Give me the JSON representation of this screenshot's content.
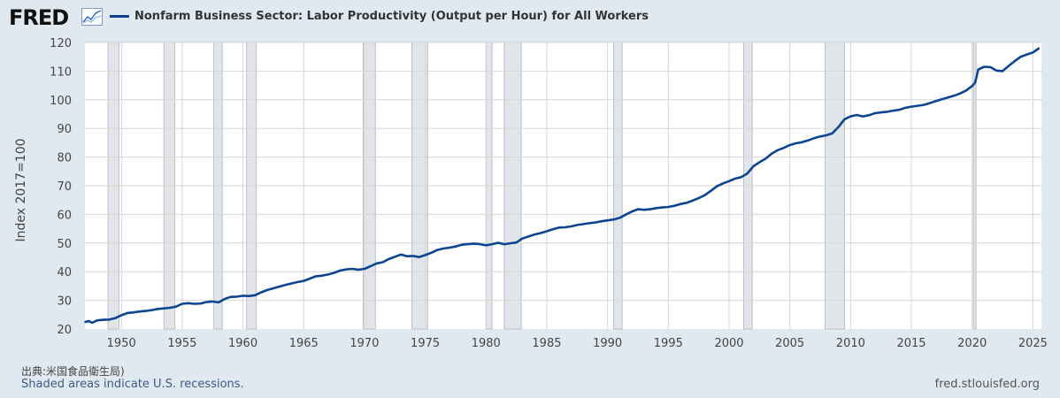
{
  "brand": {
    "logo_text": "FRED"
  },
  "colors": {
    "series": "#0b4592",
    "plot_bg": "#ffffff",
    "page_bg": "#e1e9f0",
    "grid": "#d6d6d6",
    "recession": "#e1e5ea"
  },
  "footer": {
    "source": "出典:米国食品衛生局)",
    "recession_note": "Shaded areas indicate U.S. recessions.",
    "url": "fred.stlouisfed.org"
  },
  "chart_data": {
    "type": "line",
    "ylabel": "Index 2017=100",
    "ylim": [
      20,
      120
    ],
    "xlim": [
      1947.0,
      2025.7
    ],
    "y_ticks": [
      20,
      30,
      40,
      50,
      60,
      70,
      80,
      90,
      100,
      110,
      120
    ],
    "x_ticks": [
      1950,
      1955,
      1960,
      1965,
      1970,
      1975,
      1980,
      1985,
      1990,
      1995,
      2000,
      2005,
      2010,
      2015,
      2020,
      2025
    ],
    "grid": true,
    "legend_placement": "top-left",
    "recessions": [
      [
        1948.9,
        1949.8
      ],
      [
        1953.5,
        1954.4
      ],
      [
        1957.6,
        1958.3
      ],
      [
        1960.3,
        1961.1
      ],
      [
        1969.9,
        1970.9
      ],
      [
        1973.9,
        1975.2
      ],
      [
        1980.0,
        1980.5
      ],
      [
        1981.5,
        1982.9
      ],
      [
        1990.5,
        1991.2
      ],
      [
        2001.2,
        2001.9
      ],
      [
        2007.9,
        2009.5
      ],
      [
        2020.1,
        2020.3
      ]
    ],
    "series": [
      {
        "name": "Nonfarm Business Sector: Labor Productivity (Output per Hour) for All Workers",
        "x": [
          1947.0,
          1947.3,
          1947.6,
          1948.0,
          1948.5,
          1949.0,
          1949.5,
          1950.0,
          1950.5,
          1951.0,
          1951.5,
          1952.0,
          1952.5,
          1953.0,
          1953.5,
          1954.0,
          1954.5,
          1955.0,
          1955.5,
          1956.0,
          1956.5,
          1957.0,
          1957.5,
          1958.0,
          1958.5,
          1959.0,
          1959.5,
          1960.0,
          1960.5,
          1961.0,
          1961.5,
          1962.0,
          1962.5,
          1963.0,
          1963.5,
          1964.0,
          1964.5,
          1965.0,
          1965.5,
          1966.0,
          1966.5,
          1967.0,
          1967.5,
          1968.0,
          1968.5,
          1969.0,
          1969.5,
          1970.0,
          1970.5,
          1971.0,
          1971.5,
          1972.0,
          1972.5,
          1973.0,
          1973.5,
          1974.0,
          1974.5,
          1975.0,
          1975.5,
          1976.0,
          1976.5,
          1977.0,
          1977.5,
          1978.0,
          1978.5,
          1979.0,
          1979.5,
          1980.0,
          1980.5,
          1981.0,
          1981.5,
          1982.0,
          1982.5,
          1983.0,
          1983.5,
          1984.0,
          1984.5,
          1985.0,
          1985.5,
          1986.0,
          1986.5,
          1987.0,
          1987.5,
          1988.0,
          1988.5,
          1989.0,
          1989.5,
          1990.0,
          1990.5,
          1991.0,
          1991.5,
          1992.0,
          1992.5,
          1993.0,
          1993.5,
          1994.0,
          1994.5,
          1995.0,
          1995.5,
          1996.0,
          1996.5,
          1997.0,
          1997.5,
          1998.0,
          1998.5,
          1999.0,
          1999.5,
          2000.0,
          2000.5,
          2001.0,
          2001.5,
          2002.0,
          2002.5,
          2003.0,
          2003.5,
          2004.0,
          2004.5,
          2005.0,
          2005.5,
          2006.0,
          2006.5,
          2007.0,
          2007.5,
          2008.0,
          2008.5,
          2009.0,
          2009.5,
          2010.0,
          2010.5,
          2011.0,
          2011.5,
          2012.0,
          2012.5,
          2013.0,
          2013.5,
          2014.0,
          2014.5,
          2015.0,
          2015.5,
          2016.0,
          2016.5,
          2017.0,
          2017.5,
          2018.0,
          2018.5,
          2019.0,
          2019.5,
          2020.0,
          2020.25,
          2020.5,
          2021.0,
          2021.5,
          2022.0,
          2022.5,
          2023.0,
          2023.5,
          2024.0,
          2024.5,
          2025.0,
          2025.5
        ],
        "values": [
          22.4,
          22.8,
          22.2,
          23.0,
          23.2,
          23.3,
          23.8,
          24.8,
          25.6,
          25.8,
          26.1,
          26.3,
          26.6,
          27.0,
          27.2,
          27.4,
          27.8,
          28.8,
          29.0,
          28.8,
          28.9,
          29.4,
          29.6,
          29.3,
          30.5,
          31.2,
          31.3,
          31.6,
          31.5,
          31.8,
          32.8,
          33.6,
          34.2,
          34.8,
          35.4,
          35.9,
          36.4,
          36.8,
          37.6,
          38.4,
          38.6,
          39.0,
          39.6,
          40.4,
          40.8,
          41.0,
          40.7,
          41.0,
          41.9,
          42.9,
          43.3,
          44.4,
          45.2,
          46.0,
          45.4,
          45.5,
          45.1,
          45.8,
          46.6,
          47.6,
          48.1,
          48.4,
          48.8,
          49.4,
          49.6,
          49.8,
          49.6,
          49.2,
          49.6,
          50.1,
          49.6,
          49.9,
          50.2,
          51.6,
          52.3,
          53.0,
          53.5,
          54.1,
          54.8,
          55.4,
          55.5,
          55.8,
          56.3,
          56.6,
          56.9,
          57.2,
          57.6,
          57.9,
          58.2,
          58.8,
          59.9,
          61.0,
          61.8,
          61.6,
          61.8,
          62.2,
          62.4,
          62.6,
          63.0,
          63.6,
          64.0,
          64.8,
          65.7,
          66.7,
          68.2,
          69.8,
          70.8,
          71.6,
          72.5,
          73.0,
          74.3,
          76.8,
          78.2,
          79.4,
          81.2,
          82.4,
          83.2,
          84.2,
          84.8,
          85.2,
          85.8,
          86.6,
          87.2,
          87.6,
          88.3,
          90.5,
          93.2,
          94.2,
          94.7,
          94.2,
          94.6,
          95.3,
          95.6,
          95.8,
          96.2,
          96.5,
          97.2,
          97.6,
          97.9,
          98.2,
          98.8,
          99.5,
          100.2,
          100.8,
          101.4,
          102.2,
          103.2,
          104.8,
          106.0,
          110.6,
          111.5,
          111.4,
          110.2,
          110.0,
          111.8,
          113.5,
          115.0,
          115.8,
          116.5,
          118.0
        ]
      }
    ]
  }
}
